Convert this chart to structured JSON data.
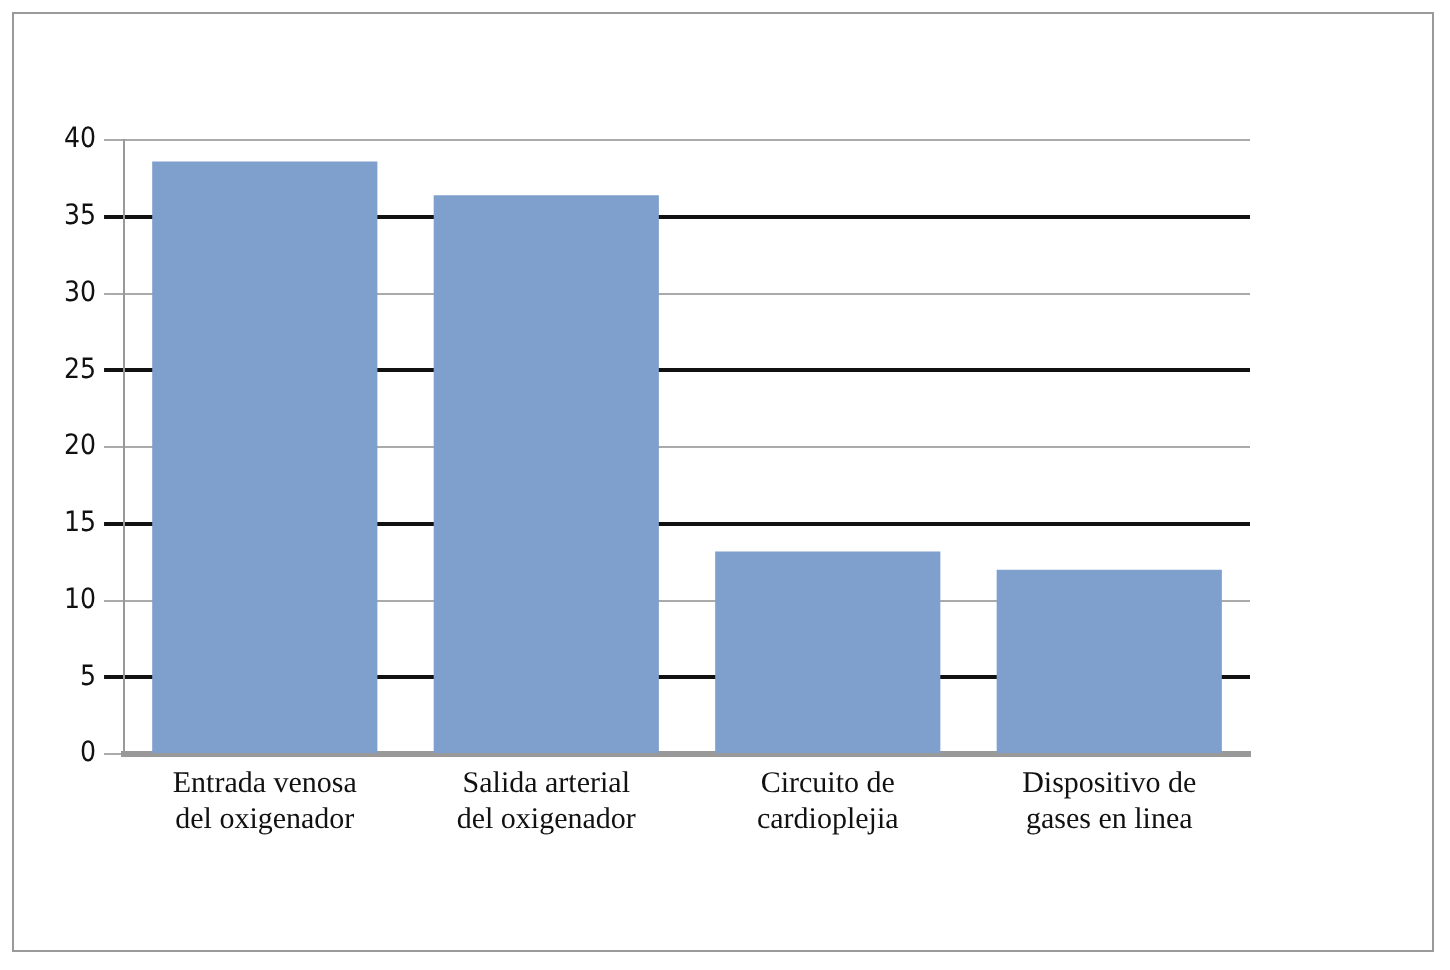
{
  "chart_data": {
    "type": "bar",
    "categories": [
      "Entrada venosa del oxigenador",
      "Salida arterial del oxigenador",
      "Circuito de cardioplejia",
      "Dispositivo de gases en linea"
    ],
    "values": [
      38.6,
      36.4,
      13.2,
      12.0
    ],
    "color": "#7f9fcc",
    "ylim": [
      0,
      40
    ],
    "yticks": [
      0,
      5,
      10,
      15,
      20,
      25,
      30,
      35,
      40
    ],
    "grid": "y",
    "legend": false
  }
}
